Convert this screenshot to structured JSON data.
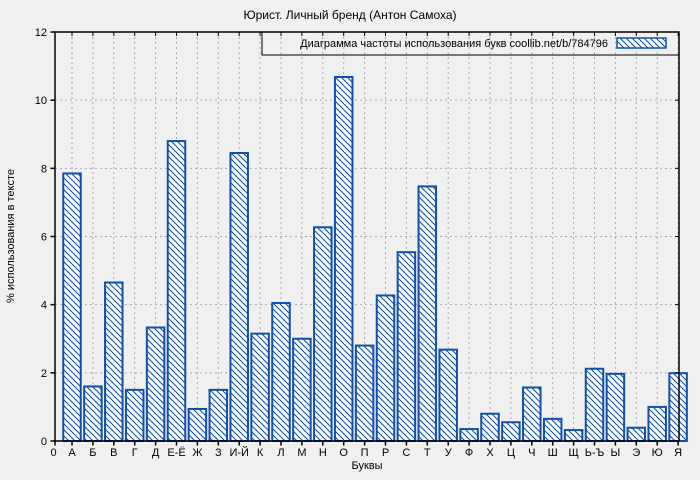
{
  "title": "Юрист. Личный бренд (Антон Самоха)",
  "chart_data": {
    "type": "bar",
    "title": "Юрист. Личный бренд (Антон Самоха)",
    "legend": "Диаграмма частоты использования букв coollib.net/b/784796",
    "legend_position": "top-right-inside-box",
    "xlabel": "Буквы",
    "ylabel": "% использования в тексте",
    "ylim": [
      0,
      12
    ],
    "yticks": [
      0,
      2,
      4,
      6,
      8,
      10,
      12
    ],
    "origin_tick_label": "0",
    "grid": true,
    "categories": [
      "А",
      "Б",
      "В",
      "Г",
      "Д",
      "Е-Ё",
      "Ж",
      "З",
      "И-Й",
      "К",
      "Л",
      "М",
      "Н",
      "О",
      "П",
      "Р",
      "С",
      "Т",
      "У",
      "Ф",
      "Х",
      "Ц",
      "Ч",
      "Ш",
      "Щ",
      "Ь-Ъ",
      "Ы",
      "Э",
      "Ю",
      "Я"
    ],
    "values": [
      7.85,
      1.6,
      4.65,
      1.5,
      3.33,
      8.8,
      0.94,
      1.5,
      8.45,
      3.15,
      4.05,
      3.0,
      6.27,
      10.68,
      2.8,
      4.27,
      5.54,
      7.47,
      2.68,
      0.35,
      0.8,
      0.55,
      1.57,
      0.65,
      0.32,
      2.12,
      1.97,
      0.39,
      1.0,
      1.99
    ],
    "colors": {
      "bar_stroke": "#1050a8",
      "bar_fill": "#ffffff",
      "grid": "#a9a9a9",
      "axis": "#000000",
      "background": "#f0f0f0",
      "text": "#000000"
    }
  }
}
